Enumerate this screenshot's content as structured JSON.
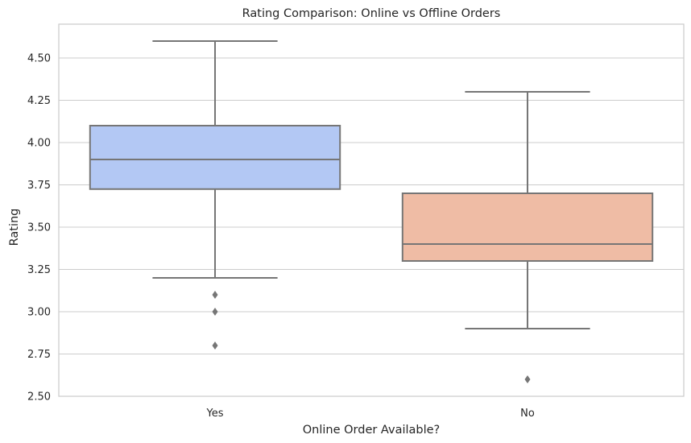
{
  "chart_data": {
    "type": "box",
    "title": "Rating Comparison: Online vs Offline Orders",
    "xlabel": "Online Order Available?",
    "ylabel": "Rating",
    "ylim": [
      2.5,
      4.7
    ],
    "yticks": [
      "2.50",
      "2.75",
      "3.00",
      "3.25",
      "3.50",
      "3.75",
      "4.00",
      "4.25",
      "4.50"
    ],
    "grid": "horizontal",
    "categories": [
      "Yes",
      "No"
    ],
    "boxes": [
      {
        "category": "Yes",
        "whisker_low": 3.2,
        "q1": 3.725,
        "median": 3.9,
        "q3": 4.1,
        "whisker_high": 4.6,
        "outliers": [
          3.1,
          3.0,
          2.8
        ],
        "color": "#b3c8f4"
      },
      {
        "category": "No",
        "whisker_low": 2.9,
        "q1": 3.3,
        "median": 3.4,
        "q3": 3.7,
        "whisker_high": 4.3,
        "outliers": [
          2.6
        ],
        "color": "#efbca5"
      }
    ]
  }
}
